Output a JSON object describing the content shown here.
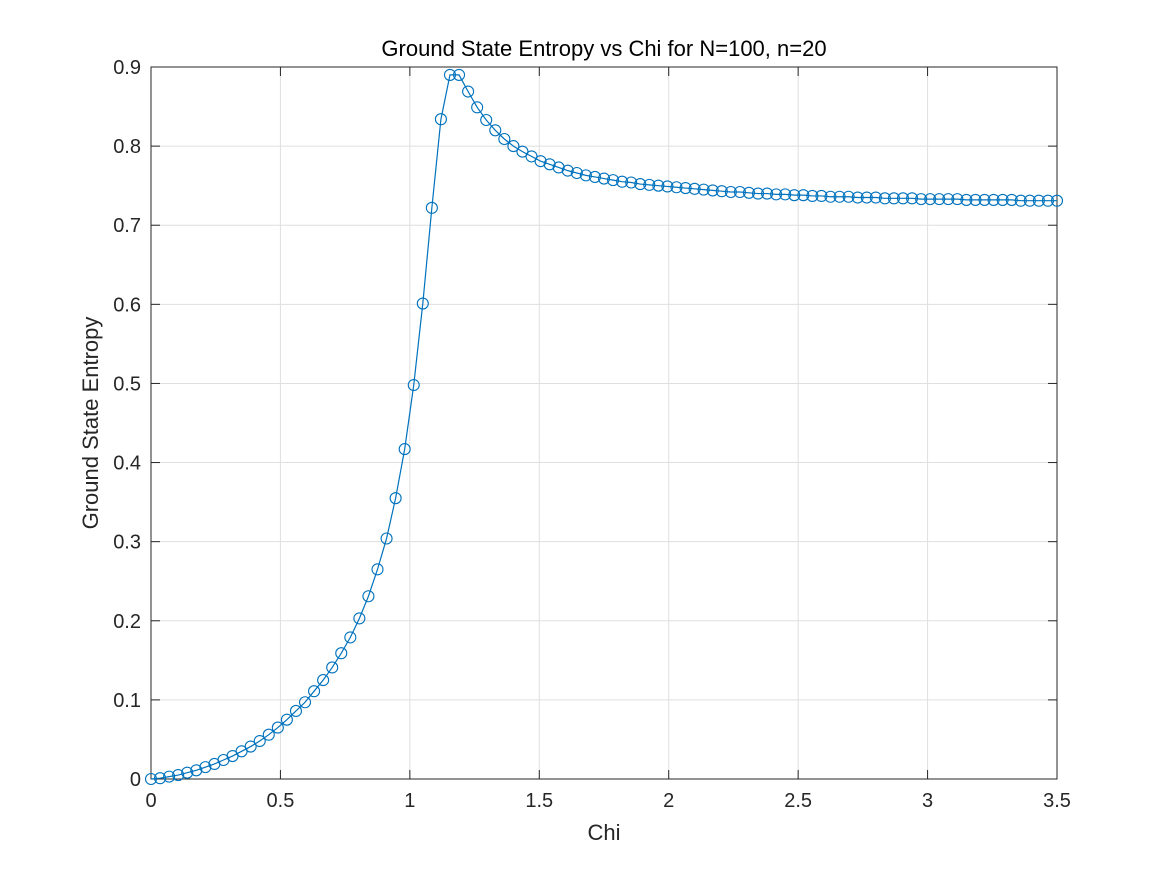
{
  "chart_data": {
    "type": "line",
    "title": "Ground State Entropy vs Chi for N=100, n=20",
    "xlabel": "Chi",
    "ylabel": "Ground State Entropy",
    "xlim": [
      0,
      3.5
    ],
    "ylim": [
      0,
      0.9
    ],
    "x_ticks": [
      "0",
      "0.5",
      "1",
      "1.5",
      "2",
      "2.5",
      "3",
      "3.5"
    ],
    "y_ticks": [
      "0",
      "0.1",
      "0.2",
      "0.3",
      "0.4",
      "0.5",
      "0.6",
      "0.7",
      "0.8",
      "0.9"
    ],
    "grid": true,
    "box": true,
    "marker": "circle",
    "series_color": "#0072BD",
    "series": [
      {
        "x": [
          0,
          0.035,
          0.07,
          0.105,
          0.14,
          0.175,
          0.21,
          0.245,
          0.28,
          0.315,
          0.35,
          0.385,
          0.42,
          0.455,
          0.49,
          0.525,
          0.56,
          0.595,
          0.63,
          0.665,
          0.7,
          0.735,
          0.77,
          0.805,
          0.84,
          0.875,
          0.91,
          0.945,
          0.98,
          1.015,
          1.05,
          1.085,
          1.12,
          1.155,
          1.19,
          1.225,
          1.26,
          1.295,
          1.33,
          1.365,
          1.4,
          1.435,
          1.47,
          1.505,
          1.54,
          1.575,
          1.61,
          1.645,
          1.68,
          1.715,
          1.75,
          1.785,
          1.82,
          1.855,
          1.89,
          1.925,
          1.96,
          1.995,
          2.03,
          2.065,
          2.1,
          2.135,
          2.17,
          2.205,
          2.24,
          2.275,
          2.31,
          2.345,
          2.38,
          2.415,
          2.45,
          2.485,
          2.52,
          2.555,
          2.59,
          2.625,
          2.66,
          2.695,
          2.73,
          2.765,
          2.8,
          2.835,
          2.87,
          2.905,
          2.94,
          2.975,
          3.01,
          3.045,
          3.08,
          3.115,
          3.15,
          3.185,
          3.22,
          3.255,
          3.29,
          3.325,
          3.36,
          3.395,
          3.43,
          3.465,
          3.5
        ],
        "y": [
          0,
          0.001,
          0.003,
          0.005,
          0.008,
          0.011,
          0.015,
          0.019,
          0.024,
          0.029,
          0.035,
          0.041,
          0.048,
          0.056,
          0.065,
          0.075,
          0.086,
          0.097,
          0.111,
          0.125,
          0.141,
          0.159,
          0.179,
          0.203,
          0.231,
          0.265,
          0.304,
          0.355,
          0.417,
          0.498,
          0.601,
          0.722,
          0.834,
          0.89,
          0.89,
          0.869,
          0.849,
          0.833,
          0.82,
          0.809,
          0.8,
          0.793,
          0.787,
          0.781,
          0.777,
          0.773,
          0.769,
          0.766,
          0.763,
          0.761,
          0.759,
          0.757,
          0.755,
          0.754,
          0.752,
          0.751,
          0.75,
          0.749,
          0.748,
          0.747,
          0.746,
          0.745,
          0.744,
          0.743,
          0.742,
          0.742,
          0.741,
          0.74,
          0.74,
          0.739,
          0.739,
          0.738,
          0.738,
          0.737,
          0.737,
          0.736,
          0.736,
          0.736,
          0.735,
          0.735,
          0.735,
          0.734,
          0.734,
          0.734,
          0.734,
          0.733,
          0.733,
          0.733,
          0.733,
          0.733,
          0.732,
          0.732,
          0.732,
          0.732,
          0.732,
          0.732,
          0.731,
          0.731,
          0.731,
          0.731,
          0.731
        ]
      }
    ]
  }
}
